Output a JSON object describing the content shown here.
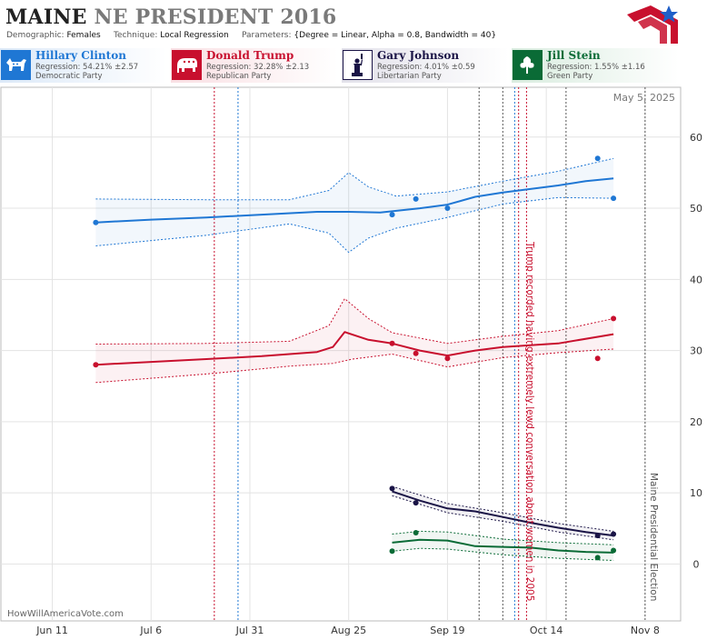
{
  "header": {
    "state": "MAINE",
    "race": "NE PRESIDENT 2016",
    "demographic_label": "Demographic:",
    "demographic_value": "Females",
    "technique_label": "Technique:",
    "technique_value": "Local Regression",
    "parameters_label": "Parameters:",
    "parameters_value": "{Degree = Linear, Alpha = 0.8, Bandwidth = 40}"
  },
  "candidates": [
    {
      "name": "Hillary Clinton",
      "regression": "Regression: 54.21% ±2.57",
      "party": "Democratic Party",
      "color": "#1f77d4",
      "icon": "donkey-icon"
    },
    {
      "name": "Donald Trump",
      "regression": "Regression: 32.28% ±2.13",
      "party": "Republican Party",
      "color": "#c8102e",
      "icon": "elephant-icon"
    },
    {
      "name": "Gary Johnson",
      "regression": "Regression: 4.01% ±0.59",
      "party": "Libertarian Party",
      "color": "#1a1446",
      "icon": "liberty-statue-icon"
    },
    {
      "name": "Jill Stein",
      "regression": "Regression: 1.55% ±1.16",
      "party": "Green Party",
      "color": "#0a6b36",
      "icon": "tree-icon"
    }
  ],
  "plot": {
    "date_stamp": "May 5, 2025",
    "watermark": "HowWillAmericaVote.com",
    "annotations": [
      {
        "text": "Trump recorded having extremely lewd conversation about women in 2005",
        "color": "#c8102e"
      },
      {
        "text": "Maine Presidential Election",
        "color": "#555555"
      }
    ]
  },
  "chart_data": {
    "type": "line",
    "x_ticks": [
      "Jun 11",
      "Jul 6",
      "Jul 31",
      "Aug 25",
      "Sep 19",
      "Oct 14",
      "Nov 8"
    ],
    "x_tick_dates": [
      "2016-06-11",
      "2016-07-06",
      "2016-07-31",
      "2016-08-25",
      "2016-09-19",
      "2016-10-14",
      "2016-11-08"
    ],
    "xlim": [
      "2016-05-29",
      "2016-11-17"
    ],
    "y_ticks": [
      0,
      10,
      20,
      30,
      40,
      50,
      60
    ],
    "ylim": [
      -8,
      67
    ],
    "grid": true,
    "event_lines": [
      {
        "date": "2016-07-22",
        "color": "#c8102e"
      },
      {
        "date": "2016-07-28",
        "color": "#1f77d4"
      },
      {
        "date": "2016-09-27",
        "color": "#555555"
      },
      {
        "date": "2016-10-03",
        "color": "#555555"
      },
      {
        "date": "2016-10-06",
        "color": "#1f77d4"
      },
      {
        "date": "2016-10-07",
        "color": "#c8102e"
      },
      {
        "date": "2016-10-09",
        "color": "#c8102e"
      },
      {
        "date": "2016-10-19",
        "color": "#555555"
      },
      {
        "date": "2016-11-08",
        "color": "#555555"
      }
    ],
    "series": [
      {
        "name": "Hillary Clinton",
        "color": "#1f77d4",
        "trend": [
          [
            "2016-06-22",
            48.0
          ],
          [
            "2016-07-06",
            48.4
          ],
          [
            "2016-07-20",
            48.7
          ],
          [
            "2016-08-03",
            49.1
          ],
          [
            "2016-08-17",
            49.5
          ],
          [
            "2016-08-25",
            49.5
          ],
          [
            "2016-09-02",
            49.4
          ],
          [
            "2016-09-12",
            50.0
          ],
          [
            "2016-09-19",
            50.5
          ],
          [
            "2016-09-26",
            51.6
          ],
          [
            "2016-10-03",
            52.2
          ],
          [
            "2016-10-10",
            52.7
          ],
          [
            "2016-10-17",
            53.2
          ],
          [
            "2016-10-24",
            53.8
          ],
          [
            "2016-10-31",
            54.2
          ]
        ],
        "upper": [
          [
            "2016-06-22",
            51.3
          ],
          [
            "2016-07-20",
            51.2
          ],
          [
            "2016-08-10",
            51.2
          ],
          [
            "2016-08-20",
            52.5
          ],
          [
            "2016-08-25",
            55.0
          ],
          [
            "2016-08-30",
            53.0
          ],
          [
            "2016-09-06",
            51.7
          ],
          [
            "2016-09-19",
            52.3
          ],
          [
            "2016-10-03",
            53.8
          ],
          [
            "2016-10-17",
            55.2
          ],
          [
            "2016-10-31",
            57.0
          ]
        ],
        "lower": [
          [
            "2016-06-22",
            44.7
          ],
          [
            "2016-07-20",
            46.2
          ],
          [
            "2016-08-10",
            47.8
          ],
          [
            "2016-08-20",
            46.5
          ],
          [
            "2016-08-25",
            43.8
          ],
          [
            "2016-08-30",
            45.8
          ],
          [
            "2016-09-06",
            47.2
          ],
          [
            "2016-09-19",
            48.7
          ],
          [
            "2016-10-03",
            50.6
          ],
          [
            "2016-10-17",
            51.5
          ],
          [
            "2016-10-31",
            51.4
          ]
        ],
        "points": [
          [
            "2016-06-22",
            48.0
          ],
          [
            "2016-09-05",
            49.1
          ],
          [
            "2016-09-11",
            51.3
          ],
          [
            "2016-09-19",
            50.0
          ],
          [
            "2016-10-27",
            57.0
          ],
          [
            "2016-10-31",
            51.4
          ]
        ]
      },
      {
        "name": "Donald Trump",
        "color": "#c8102e",
        "trend": [
          [
            "2016-06-22",
            28.0
          ],
          [
            "2016-07-06",
            28.4
          ],
          [
            "2016-07-20",
            28.8
          ],
          [
            "2016-08-03",
            29.2
          ],
          [
            "2016-08-17",
            29.8
          ],
          [
            "2016-08-21",
            30.5
          ],
          [
            "2016-08-24",
            32.6
          ],
          [
            "2016-08-30",
            31.5
          ],
          [
            "2016-09-05",
            31.0
          ],
          [
            "2016-09-12",
            30.0
          ],
          [
            "2016-09-19",
            29.3
          ],
          [
            "2016-09-26",
            30.0
          ],
          [
            "2016-10-03",
            30.5
          ],
          [
            "2016-10-17",
            31.0
          ],
          [
            "2016-10-31",
            32.3
          ]
        ],
        "upper": [
          [
            "2016-06-22",
            30.9
          ],
          [
            "2016-07-20",
            31.0
          ],
          [
            "2016-08-10",
            31.3
          ],
          [
            "2016-08-20",
            33.5
          ],
          [
            "2016-08-24",
            37.3
          ],
          [
            "2016-08-30",
            34.5
          ],
          [
            "2016-09-05",
            32.5
          ],
          [
            "2016-09-19",
            31.0
          ],
          [
            "2016-10-03",
            32.0
          ],
          [
            "2016-10-17",
            32.8
          ],
          [
            "2016-10-31",
            34.5
          ]
        ],
        "lower": [
          [
            "2016-06-22",
            25.5
          ],
          [
            "2016-07-20",
            26.7
          ],
          [
            "2016-08-10",
            27.8
          ],
          [
            "2016-08-21",
            28.2
          ],
          [
            "2016-08-26",
            28.8
          ],
          [
            "2016-09-05",
            29.5
          ],
          [
            "2016-09-19",
            27.7
          ],
          [
            "2016-10-03",
            29.0
          ],
          [
            "2016-10-17",
            29.7
          ],
          [
            "2016-10-31",
            30.2
          ]
        ],
        "points": [
          [
            "2016-06-22",
            28.0
          ],
          [
            "2016-09-05",
            31.0
          ],
          [
            "2016-09-11",
            29.6
          ],
          [
            "2016-09-19",
            28.9
          ],
          [
            "2016-10-27",
            28.9
          ],
          [
            "2016-10-31",
            34.5
          ]
        ]
      },
      {
        "name": "Gary Johnson",
        "color": "#1a1446",
        "trend": [
          [
            "2016-09-05",
            10.2
          ],
          [
            "2016-09-12",
            8.9
          ],
          [
            "2016-09-19",
            7.8
          ],
          [
            "2016-09-26",
            7.4
          ],
          [
            "2016-10-03",
            6.6
          ],
          [
            "2016-10-10",
            5.8
          ],
          [
            "2016-10-17",
            5.1
          ],
          [
            "2016-10-24",
            4.5
          ],
          [
            "2016-10-31",
            4.0
          ]
        ],
        "upper": [
          [
            "2016-09-05",
            10.9
          ],
          [
            "2016-09-19",
            8.5
          ],
          [
            "2016-10-03",
            7.2
          ],
          [
            "2016-10-17",
            5.7
          ],
          [
            "2016-10-31",
            4.6
          ]
        ],
        "lower": [
          [
            "2016-09-05",
            9.6
          ],
          [
            "2016-09-19",
            7.2
          ],
          [
            "2016-10-03",
            6.0
          ],
          [
            "2016-10-17",
            4.5
          ],
          [
            "2016-10-31",
            3.4
          ]
        ],
        "points": [
          [
            "2016-09-05",
            10.6
          ],
          [
            "2016-09-11",
            8.6
          ],
          [
            "2016-10-27",
            4.0
          ],
          [
            "2016-10-31",
            4.2
          ]
        ]
      },
      {
        "name": "Jill Stein",
        "color": "#0a6b36",
        "trend": [
          [
            "2016-09-05",
            3.0
          ],
          [
            "2016-09-12",
            3.4
          ],
          [
            "2016-09-19",
            3.3
          ],
          [
            "2016-09-26",
            2.5
          ],
          [
            "2016-10-03",
            2.4
          ],
          [
            "2016-10-10",
            2.3
          ],
          [
            "2016-10-17",
            1.9
          ],
          [
            "2016-10-24",
            1.7
          ],
          [
            "2016-10-31",
            1.6
          ]
        ],
        "upper": [
          [
            "2016-09-05",
            4.2
          ],
          [
            "2016-09-12",
            4.6
          ],
          [
            "2016-09-19",
            4.5
          ],
          [
            "2016-10-03",
            3.5
          ],
          [
            "2016-10-17",
            3.0
          ],
          [
            "2016-10-31",
            2.7
          ]
        ],
        "lower": [
          [
            "2016-09-05",
            1.8
          ],
          [
            "2016-09-12",
            2.2
          ],
          [
            "2016-09-19",
            2.1
          ],
          [
            "2016-10-03",
            1.3
          ],
          [
            "2016-10-17",
            0.8
          ],
          [
            "2016-10-31",
            0.5
          ]
        ],
        "points": [
          [
            "2016-09-05",
            1.8
          ],
          [
            "2016-09-11",
            4.4
          ],
          [
            "2016-10-27",
            0.9
          ],
          [
            "2016-10-31",
            1.9
          ]
        ]
      }
    ]
  }
}
